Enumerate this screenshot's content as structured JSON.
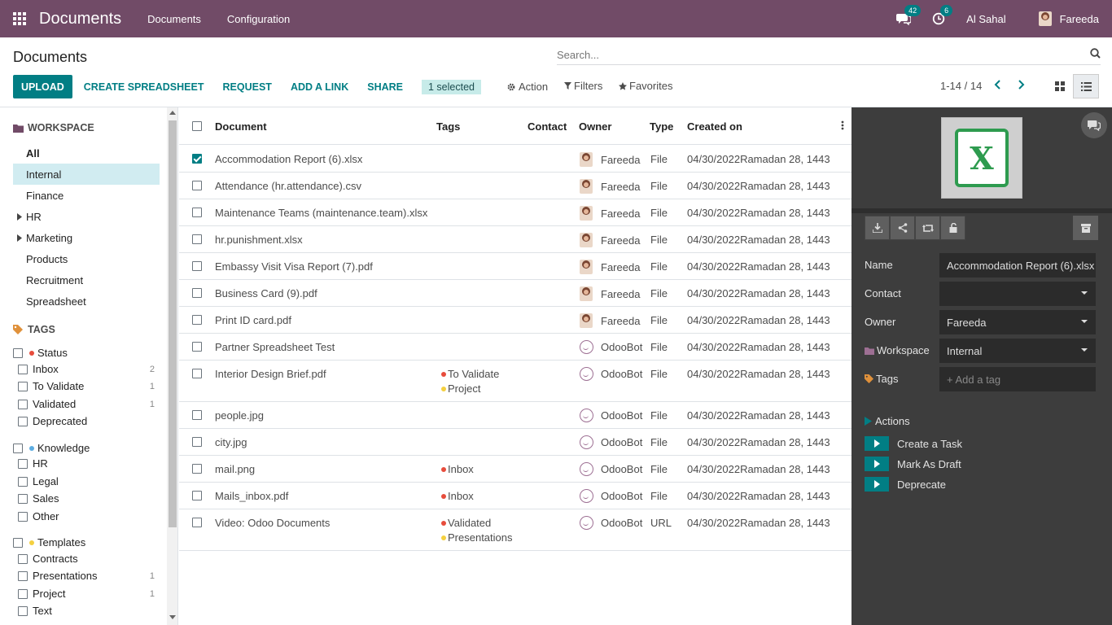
{
  "navbar": {
    "app_title": "Documents",
    "menus": [
      "Documents",
      "Configuration"
    ],
    "messages_count": "42",
    "activities_count": "6",
    "company": "Al Sahal",
    "user": "Fareeda",
    "bg_color": "#714b67"
  },
  "control_panel": {
    "title": "Documents",
    "search_placeholder": "Search...",
    "buttons": {
      "upload": "UPLOAD",
      "create_spreadsheet": "CREATE SPREADSHEET",
      "request": "REQUEST",
      "add_link": "ADD A LINK",
      "share": "SHARE"
    },
    "selected": "1 selected",
    "action": "Action",
    "filters": "Filters",
    "favorites": "Favorites",
    "pager": "1-14 / 14"
  },
  "sidebar": {
    "workspace_header": "WORKSPACE",
    "workspaces": [
      {
        "label": "All"
      },
      {
        "label": "Internal"
      },
      {
        "label": "Finance"
      },
      {
        "label": "HR"
      },
      {
        "label": "Marketing"
      },
      {
        "label": "Products"
      },
      {
        "label": "Recruitment"
      },
      {
        "label": "Spreadsheet"
      }
    ],
    "tags_header": "TAGS",
    "tag_groups": [
      {
        "label": "Status",
        "color": "#e74c3c",
        "items": [
          {
            "label": "Inbox",
            "count": "2"
          },
          {
            "label": "To Validate",
            "count": "1"
          },
          {
            "label": "Validated",
            "count": "1"
          },
          {
            "label": "Deprecated",
            "count": ""
          }
        ]
      },
      {
        "label": "Knowledge",
        "color": "#5dade2",
        "items": [
          {
            "label": "HR",
            "count": ""
          },
          {
            "label": "Legal",
            "count": ""
          },
          {
            "label": "Sales",
            "count": ""
          },
          {
            "label": "Other",
            "count": ""
          }
        ]
      },
      {
        "label": "Templates",
        "color": "#f4d03f",
        "items": [
          {
            "label": "Contracts",
            "count": ""
          },
          {
            "label": "Presentations",
            "count": "1"
          },
          {
            "label": "Project",
            "count": "1"
          },
          {
            "label": "Text",
            "count": ""
          }
        ]
      }
    ]
  },
  "list": {
    "columns": {
      "document": "Document",
      "tags": "Tags",
      "contact": "Contact",
      "owner": "Owner",
      "type": "Type",
      "created_on": "Created on"
    },
    "rows": [
      {
        "name": "Accommodation Report (6).xlsx",
        "tags": [],
        "owner": "Fareeda",
        "avatar": "user",
        "type": "File",
        "created": "04/30/2022Ramadan 28, 1443",
        "checked": true
      },
      {
        "name": "Attendance (hr.attendance).csv",
        "tags": [],
        "owner": "Fareeda",
        "avatar": "user",
        "type": "File",
        "created": "04/30/2022Ramadan 28, 1443",
        "checked": false
      },
      {
        "name": "Maintenance Teams (maintenance.team).xlsx",
        "tags": [],
        "owner": "Fareeda",
        "avatar": "user",
        "type": "File",
        "created": "04/30/2022Ramadan 28, 1443",
        "checked": false
      },
      {
        "name": "hr.punishment.xlsx",
        "tags": [],
        "owner": "Fareeda",
        "avatar": "user",
        "type": "File",
        "created": "04/30/2022Ramadan 28, 1443",
        "checked": false
      },
      {
        "name": "Embassy Visit Visa Report (7).pdf",
        "tags": [],
        "owner": "Fareeda",
        "avatar": "user",
        "type": "File",
        "created": "04/30/2022Ramadan 28, 1443",
        "checked": false
      },
      {
        "name": "Business Card (9).pdf",
        "tags": [],
        "owner": "Fareeda",
        "avatar": "user",
        "type": "File",
        "created": "04/30/2022Ramadan 28, 1443",
        "checked": false
      },
      {
        "name": "Print ID card.pdf",
        "tags": [],
        "owner": "Fareeda",
        "avatar": "user",
        "type": "File",
        "created": "04/30/2022Ramadan 28, 1443",
        "checked": false
      },
      {
        "name": "Partner Spreadsheet Test",
        "tags": [],
        "owner": "OdooBot",
        "avatar": "bot",
        "type": "File",
        "created": "04/30/2022Ramadan 28, 1443",
        "checked": false
      },
      {
        "name": "Interior Design Brief.pdf",
        "tags": [
          {
            "label": "To Validate",
            "color": "#e74c3c"
          },
          {
            "label": "Project",
            "color": "#f4d03f"
          }
        ],
        "owner": "OdooBot",
        "avatar": "bot",
        "type": "File",
        "created": "04/30/2022Ramadan 28, 1443",
        "checked": false
      },
      {
        "name": "people.jpg",
        "tags": [],
        "owner": "OdooBot",
        "avatar": "bot",
        "type": "File",
        "created": "04/30/2022Ramadan 28, 1443",
        "checked": false
      },
      {
        "name": "city.jpg",
        "tags": [],
        "owner": "OdooBot",
        "avatar": "bot",
        "type": "File",
        "created": "04/30/2022Ramadan 28, 1443",
        "checked": false
      },
      {
        "name": "mail.png",
        "tags": [
          {
            "label": "Inbox",
            "color": "#e74c3c"
          }
        ],
        "owner": "OdooBot",
        "avatar": "bot",
        "type": "File",
        "created": "04/30/2022Ramadan 28, 1443",
        "checked": false
      },
      {
        "name": "Mails_inbox.pdf",
        "tags": [
          {
            "label": "Inbox",
            "color": "#e74c3c"
          }
        ],
        "owner": "OdooBot",
        "avatar": "bot",
        "type": "File",
        "created": "04/30/2022Ramadan 28, 1443",
        "checked": false
      },
      {
        "name": "Video: Odoo Documents",
        "tags": [
          {
            "label": "Validated",
            "color": "#e74c3c"
          },
          {
            "label": "Presentations",
            "color": "#f4d03f"
          }
        ],
        "owner": "OdooBot",
        "avatar": "bot",
        "type": "URL",
        "created": "04/30/2022Ramadan 28, 1443",
        "checked": false
      }
    ]
  },
  "inspector": {
    "name_label": "Name",
    "name_value": "Accommodation Report (6).xlsx",
    "contact_label": "Contact",
    "contact_value": "",
    "owner_label": "Owner",
    "owner_value": "Fareeda",
    "workspace_label": "Workspace",
    "workspace_value": "Internal",
    "tags_label": "Tags",
    "tags_placeholder": "+ Add a tag",
    "actions_header": "Actions",
    "actions": [
      "Create a Task",
      "Mark As Draft",
      "Deprecate"
    ],
    "thumbnail_letter": "X"
  }
}
